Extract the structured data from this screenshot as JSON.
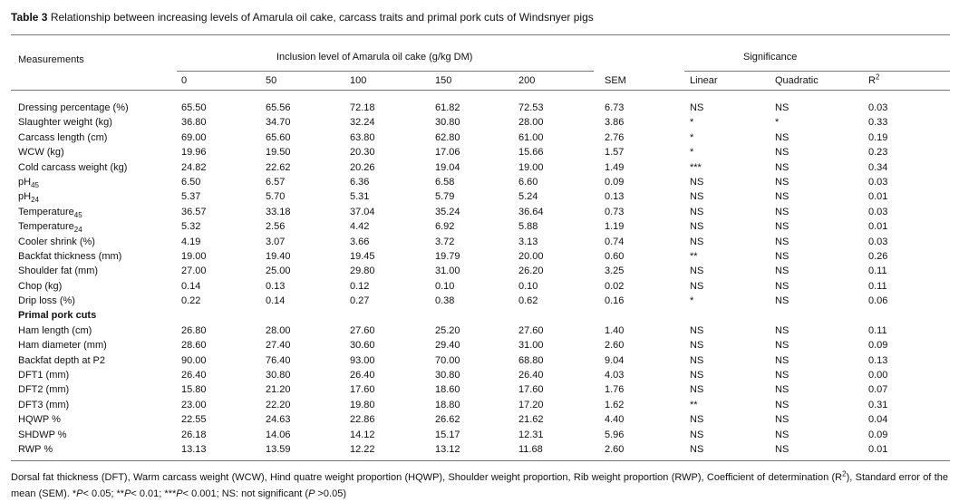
{
  "title": {
    "label": "Table 3",
    "text": "Relationship between increasing levels of Amarula oil cake, carcass traits and primal pork cuts of Windsnyer pigs"
  },
  "table": {
    "header": {
      "measurements": "Measurements",
      "inclusion": "Inclusion level of Amarula oil cake (g/kg DM)",
      "significance": "Significance",
      "columns": [
        "0",
        "50",
        "100",
        "150",
        "200",
        "SEM",
        "Linear",
        "Quadratic"
      ],
      "r2": {
        "text": "R",
        "sup": "2"
      }
    },
    "rows": [
      {
        "label": "Dressing percentage (%)",
        "cells": [
          "65.50",
          "65.56",
          "72.18",
          "61.82",
          "72.53",
          "6.73",
          "NS",
          "NS",
          "0.03"
        ]
      },
      {
        "label": "Slaughter weight (kg)",
        "cells": [
          "36.80",
          "34.70",
          "32.24",
          "30.80",
          "28.00",
          "3.86",
          "*",
          "*",
          "0.33"
        ]
      },
      {
        "label": "Carcass length (cm)",
        "cells": [
          "69.00",
          "65.60",
          "63.80",
          "62.80",
          "61.00",
          "2.76",
          "*",
          "NS",
          "0.19"
        ]
      },
      {
        "label": "WCW (kg)",
        "cells": [
          "19.96",
          "19.50",
          "20.30",
          "17.06",
          "15.66",
          "1.57",
          "*",
          "NS",
          "0.23"
        ]
      },
      {
        "label": "Cold carcass weight (kg)",
        "cells": [
          "24.82",
          "22.62",
          "20.26",
          "19.04",
          "19.00",
          "1.49",
          "***",
          "NS",
          "0.34"
        ]
      },
      {
        "label": "pH",
        "sub": "45",
        "cells": [
          "6.50",
          "6.57",
          "6.36",
          "6.58",
          "6.60",
          "0.09",
          "NS",
          "NS",
          "0.03"
        ]
      },
      {
        "label": "pH",
        "sub": "24",
        "cells": [
          "5.37",
          "5.70",
          "5.31",
          "5.79",
          "5.24",
          "0.13",
          "NS",
          "NS",
          "0.01"
        ]
      },
      {
        "label": "Temperature",
        "sub": "45",
        "cells": [
          "36.57",
          "33.18",
          "37.04",
          "35.24",
          "36.64",
          "0.73",
          "NS",
          "NS",
          "0.03"
        ]
      },
      {
        "label": "Temperature",
        "sub": "24",
        "cells": [
          "5.32",
          "2.56",
          "4.42",
          "6.92",
          "5.88",
          "1.19",
          "NS",
          "NS",
          "0.01"
        ]
      },
      {
        "label": "Cooler shrink (%)",
        "cells": [
          "4.19",
          "3.07",
          "3.66",
          "3.72",
          "3.13",
          "0.74",
          "NS",
          "NS",
          "0.03"
        ]
      },
      {
        "label": "Backfat thickness (mm)",
        "cells": [
          "19.00",
          "19.40",
          "19.45",
          "19.79",
          "20.00",
          "0.60",
          "**",
          "NS",
          "0.26"
        ]
      },
      {
        "label": "Shoulder fat (mm)",
        "cells": [
          "27.00",
          "25.00",
          "29.80",
          "31.00",
          "26.20",
          "3.25",
          "NS",
          "NS",
          "0.11"
        ]
      },
      {
        "label": "Chop (kg)",
        "cells": [
          "0.14",
          "0.13",
          "0.12",
          "0.10",
          "0.10",
          "0.02",
          "NS",
          "NS",
          "0.11"
        ]
      },
      {
        "label": "Drip loss (%)",
        "cells": [
          "0.22",
          "0.14",
          "0.27",
          "0.38",
          "0.62",
          "0.16",
          "*",
          "NS",
          "0.06"
        ]
      },
      {
        "section": "Primal pork cuts"
      },
      {
        "label": "Ham length (cm)",
        "cells": [
          "26.80",
          "28.00",
          "27.60",
          "25.20",
          "27.60",
          "1.40",
          "NS",
          "NS",
          "0.11"
        ]
      },
      {
        "label": "Ham diameter (mm)",
        "cells": [
          "28.60",
          "27.40",
          "30.60",
          "29.40",
          "31.00",
          "2.60",
          "NS",
          "NS",
          "0.09"
        ]
      },
      {
        "label": "Backfat depth at P2",
        "cells": [
          "90.00",
          "76.40",
          "93.00",
          "70.00",
          "68.80",
          "9.04",
          "NS",
          "NS",
          "0.13"
        ]
      },
      {
        "label": "DFT1 (mm)",
        "cells": [
          "26.40",
          "30.80",
          "26.40",
          "30.80",
          "26.40",
          "4.03",
          "NS",
          "NS",
          "0.00"
        ]
      },
      {
        "label": "DFT2 (mm)",
        "cells": [
          "15.80",
          "21.20",
          "17.60",
          "18.60",
          "17.60",
          "1.76",
          "NS",
          "NS",
          "0.07"
        ]
      },
      {
        "label": "DFT3 (mm)",
        "cells": [
          "23.00",
          "22.20",
          "19.80",
          "18.80",
          "17.20",
          "1.62",
          "**",
          "NS",
          "0.31"
        ]
      },
      {
        "label": "HQWP %",
        "cells": [
          "22.55",
          "24.63",
          "22.86",
          "26.62",
          "21.62",
          "4.40",
          "NS",
          "NS",
          "0.04"
        ]
      },
      {
        "label": "SHDWP %",
        "cells": [
          "26.18",
          "14.06",
          "14.12",
          "15.17",
          "12.31",
          "5.96",
          "NS",
          "NS",
          "0.09"
        ]
      },
      {
        "label": "RWP %",
        "cells": [
          "13.13",
          "13.59",
          "12.22",
          "13.12",
          "11.68",
          "2.60",
          "NS",
          "NS",
          "0.01"
        ]
      }
    ]
  },
  "footnote": [
    "Dorsal fat thickness (DFT), Warm carcass weight (WCW), Hind quatre weight proportion (HQWP), Shoulder weight proportion, Rib weight proportion (RWP), Coefficient of determination (R",
    "2",
    "), Standard error of the mean (SEM). *",
    "P",
    "< 0.05; **",
    "P",
    "< 0.01; ***",
    "P",
    "< 0.001; NS: not significant (",
    "P",
    " >0.05)"
  ]
}
